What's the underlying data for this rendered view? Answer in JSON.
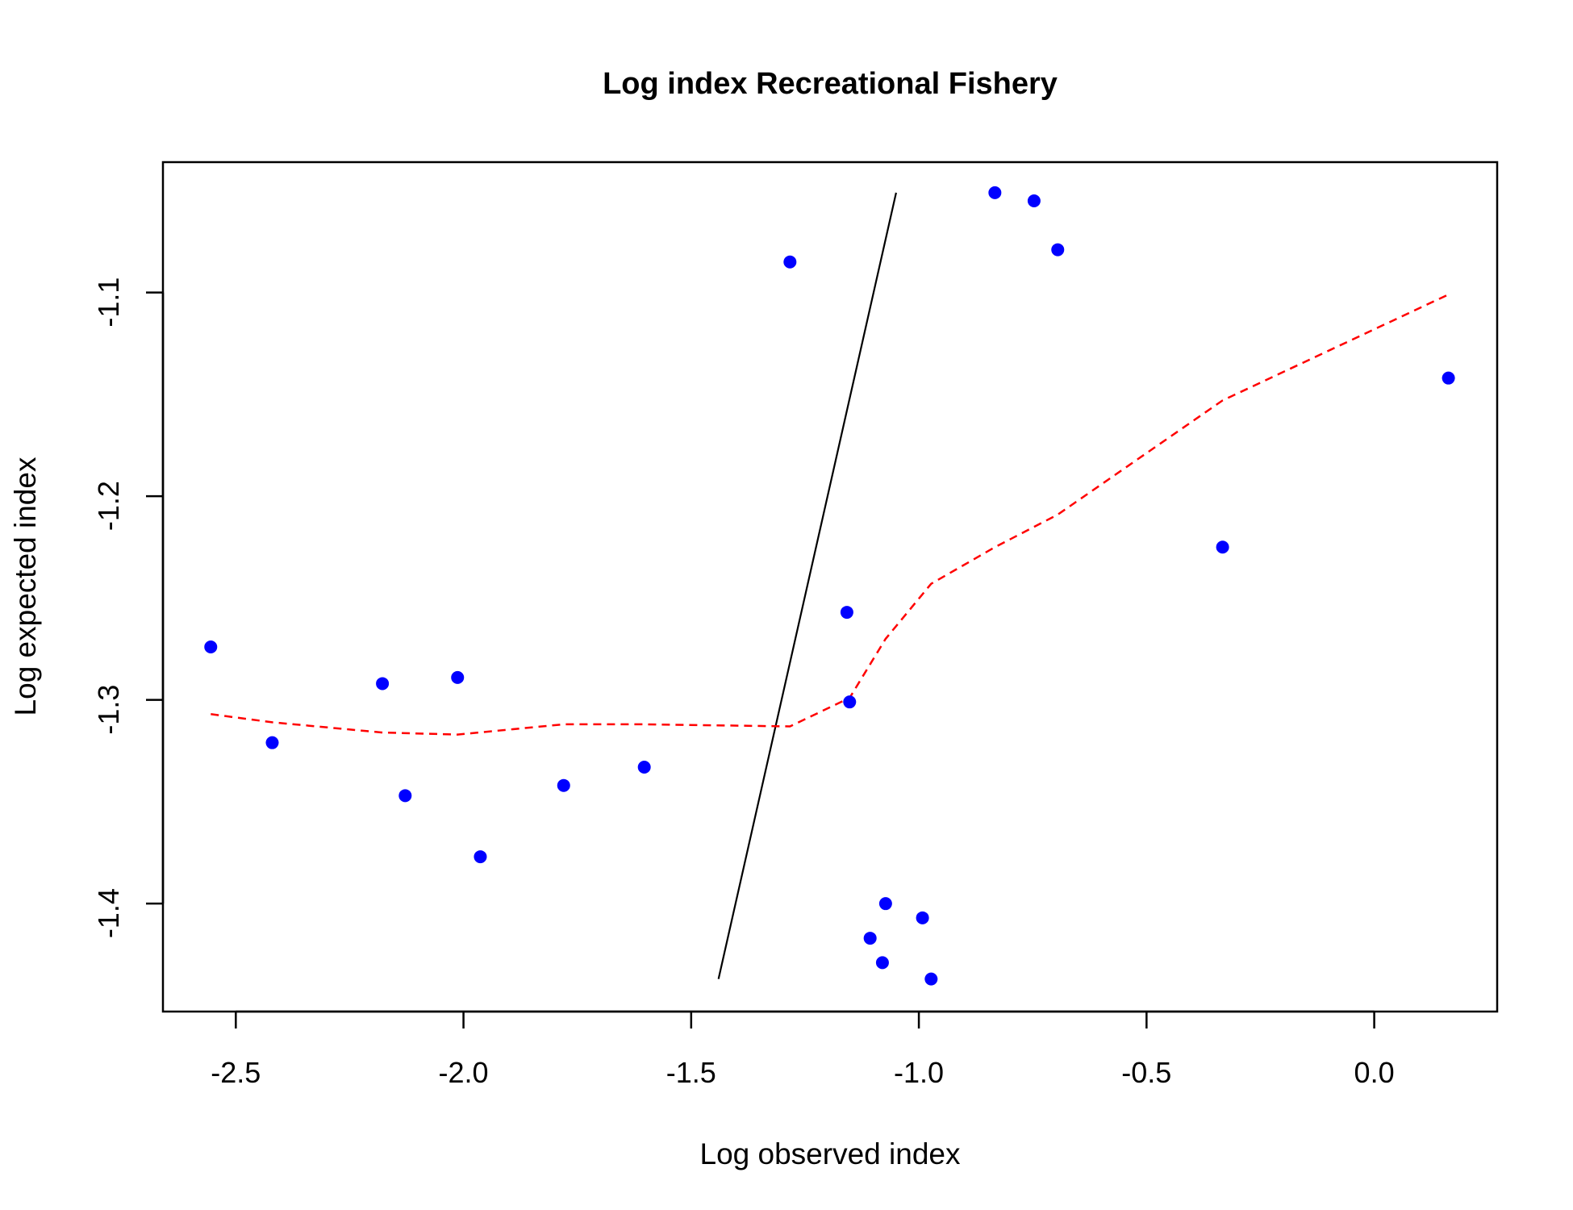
{
  "chart_data": {
    "type": "scatter",
    "title": "Log index Recreational Fishery",
    "xlabel": "Log observed index",
    "ylabel": "Log expected index",
    "xlim": [
      -2.66,
      0.27
    ],
    "ylim": [
      -1.453,
      -1.036
    ],
    "x_ticks": [
      -2.5,
      -2.0,
      -1.5,
      -1.0,
      -0.5,
      0.0
    ],
    "x_tick_labels": [
      "-2.5",
      "-2.0",
      "-1.5",
      "-1.0",
      "-0.5",
      "0.0"
    ],
    "y_ticks": [
      -1.1,
      -1.2,
      -1.3,
      -1.4
    ],
    "y_tick_labels": [
      "-1.1",
      "-1.2",
      "-1.3",
      "-1.4"
    ],
    "grid": false,
    "points": {
      "color": "#0000ff",
      "x": [
        -2.555,
        -2.42,
        -2.178,
        -2.128,
        -2.013,
        -1.963,
        -1.78,
        -1.603,
        -1.283,
        -1.158,
        -1.152,
        -1.107,
        -1.08,
        -1.073,
        -0.992,
        -0.973,
        -0.833,
        -0.747,
        -0.695,
        -0.333,
        0.163
      ],
      "y": [
        -1.274,
        -1.321,
        -1.292,
        -1.347,
        -1.289,
        -1.377,
        -1.342,
        -1.333,
        -1.085,
        -1.257,
        -1.301,
        -1.417,
        -1.429,
        -1.4,
        -1.407,
        -1.437,
        -1.051,
        -1.055,
        -1.079,
        -1.225,
        -1.142
      ]
    },
    "series": [
      {
        "line": "solid",
        "color": "#000000",
        "x": [
          -1.44,
          -1.05
        ],
        "y": [
          -1.437,
          -1.051
        ]
      },
      {
        "line": "dashed",
        "color": "#ff0000",
        "x": [
          -2.555,
          -2.42,
          -2.178,
          -2.013,
          -1.78,
          -1.603,
          -1.283,
          -1.152,
          -1.073,
          -0.973,
          -0.833,
          -0.695,
          -0.333,
          0.163
        ],
        "y": [
          -1.307,
          -1.311,
          -1.316,
          -1.317,
          -1.312,
          -1.312,
          -1.313,
          -1.299,
          -1.27,
          -1.243,
          -1.225,
          -1.209,
          -1.153,
          -1.101
        ]
      }
    ]
  }
}
